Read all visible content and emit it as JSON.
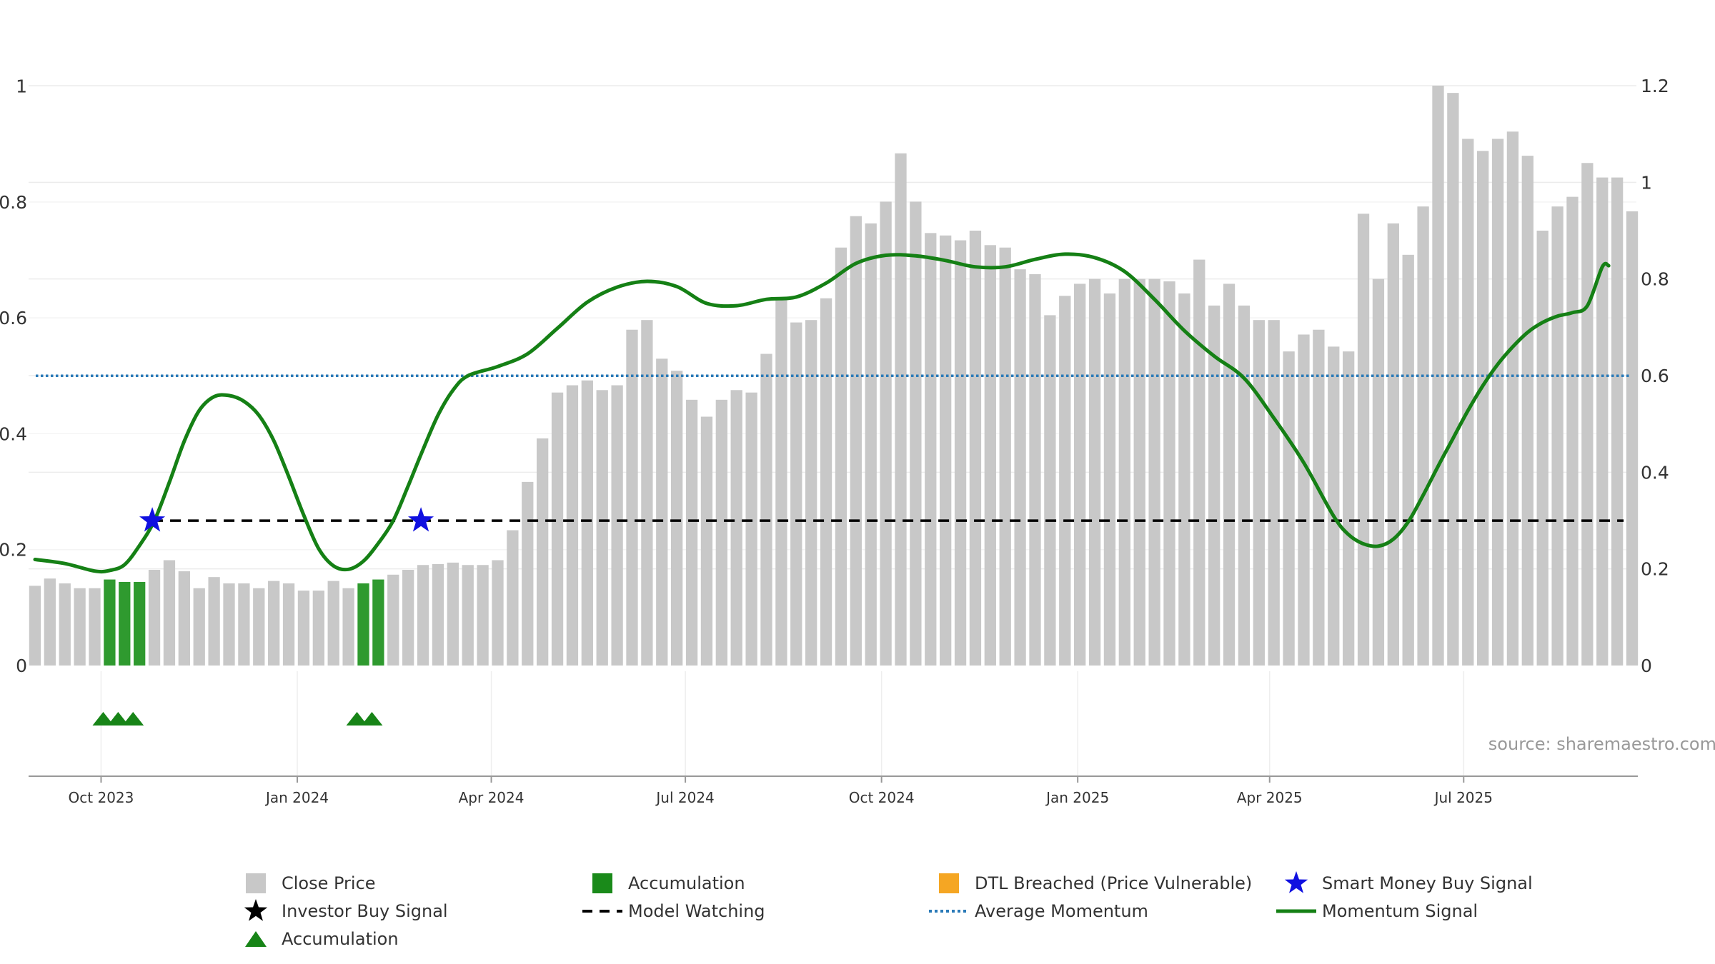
{
  "source_text": "source: sharemaestro.com",
  "colors": {
    "close_price": "#c8c8c8",
    "accumulation": "#2f9a2f",
    "accumulation_marker": "#178417",
    "dtl_breached": "#f5a623",
    "smart_money_star": "#1010e0",
    "investor_star": "#000000",
    "model_watching": "#000000",
    "average_momentum": "#2a7ab8",
    "momentum": "#158015"
  },
  "legend": [
    {
      "key": "close_price",
      "label": "Close Price",
      "symbol": "square-grey-icon"
    },
    {
      "key": "accumulation_bar",
      "label": "Accumulation",
      "symbol": "square-green-icon"
    },
    {
      "key": "dtl",
      "label": "DTL Breached (Price Vulnerable)",
      "symbol": "square-orange-icon"
    },
    {
      "key": "smart_money",
      "label": "Smart Money Buy Signal",
      "symbol": "star-blue-icon"
    },
    {
      "key": "investor",
      "label": "Investor Buy Signal",
      "symbol": "star-black-icon"
    },
    {
      "key": "model_watching",
      "label": "Model Watching",
      "symbol": "dashed-line-icon"
    },
    {
      "key": "average_momentum",
      "label": "Average Momentum",
      "symbol": "dotted-line-icon"
    },
    {
      "key": "momentum",
      "label": "Momentum Signal",
      "symbol": "solid-line-icon"
    },
    {
      "key": "accumulation_marker",
      "label": "Accumulation",
      "symbol": "triangle-green-icon"
    }
  ],
  "chart_data": {
    "type": "bar",
    "left_axis": {
      "ticks": [
        0,
        0.2,
        0.4,
        0.6,
        0.8,
        1
      ],
      "tick_labels": [
        "0",
        "0.2",
        "0.4",
        "0.6",
        "0.8",
        "1"
      ],
      "range": [
        0,
        1.05
      ]
    },
    "right_axis": {
      "ticks": [
        0,
        0.2,
        0.4,
        0.6,
        0.8,
        1,
        1.2
      ],
      "tick_labels": [
        "0",
        "0.2",
        "0.4",
        "0.6",
        "0.8",
        "1",
        "1.2"
      ],
      "range": [
        0,
        1.2
      ]
    },
    "x_axis": {
      "start": "2023-08-28",
      "end": "2025-09-20",
      "ticks": [
        {
          "date": "2023-10-01",
          "label": "Oct 2023"
        },
        {
          "date": "2024-01-01",
          "label": "Jan 2024"
        },
        {
          "date": "2024-04-01",
          "label": "Apr 2024"
        },
        {
          "date": "2024-07-01",
          "label": "Jul 2024"
        },
        {
          "date": "2024-10-01",
          "label": "Oct 2024"
        },
        {
          "date": "2025-01-01",
          "label": "Jan 2025"
        },
        {
          "date": "2025-04-01",
          "label": "Apr 2025"
        },
        {
          "date": "2025-07-01",
          "label": "Jul 2025"
        }
      ]
    },
    "close_price": {
      "name": "Close Price",
      "week_start": "2023-08-28",
      "values": [
        0.165,
        0.18,
        0.17,
        0.16,
        0.16,
        0.178,
        0.173,
        0.173,
        0.198,
        0.218,
        0.195,
        0.16,
        0.183,
        0.17,
        0.17,
        0.16,
        0.175,
        0.17,
        0.155,
        0.155,
        0.175,
        0.16,
        0.17,
        0.178,
        0.188,
        0.198,
        0.208,
        0.21,
        0.213,
        0.208,
        0.208,
        0.218,
        0.28,
        0.38,
        0.47,
        0.565,
        0.58,
        0.59,
        0.57,
        0.58,
        0.695,
        0.715,
        0.635,
        0.61,
        0.55,
        0.515,
        0.55,
        0.57,
        0.565,
        0.645,
        0.76,
        0.71,
        0.715,
        0.76,
        0.865,
        0.93,
        0.915,
        0.96,
        1.06,
        0.96,
        0.895,
        0.89,
        0.88,
        0.9,
        0.87,
        0.865,
        0.82,
        0.81,
        0.725,
        0.765,
        0.79,
        0.8,
        0.77,
        0.8,
        0.8,
        0.8,
        0.795,
        0.77,
        0.84,
        0.745,
        0.79,
        0.745,
        0.715,
        0.715,
        0.65,
        0.685,
        0.695,
        0.66,
        0.65,
        0.935,
        0.8,
        0.915,
        0.85,
        0.95,
        1.2,
        1.185,
        1.09,
        1.065,
        1.09,
        1.105,
        1.055,
        0.9,
        0.95,
        0.97,
        1.04,
        1.01,
        1.01,
        0.94
      ]
    },
    "accumulation_weeks": [
      5,
      6,
      7,
      22,
      23
    ],
    "accumulation_markers": [
      "2023-10-02",
      "2023-10-09",
      "2023-10-16",
      "2024-01-29",
      "2024-02-05"
    ],
    "model_watching": {
      "name": "Model Watching",
      "value": 0.25,
      "from": "2023-10-25",
      "to": "2025-09-14"
    },
    "average_momentum": {
      "name": "Average Momentum",
      "value": 0.5
    },
    "smart_money_buy_signals": [
      {
        "date": "2023-10-25",
        "value": 0.25
      },
      {
        "date": "2024-02-28",
        "value": 0.25
      }
    ],
    "momentum": {
      "name": "Momentum Signal",
      "points": [
        [
          "2023-08-31",
          0.183
        ],
        [
          "2023-09-14",
          0.176
        ],
        [
          "2023-09-28",
          0.163
        ],
        [
          "2023-10-05",
          0.164
        ],
        [
          "2023-10-12",
          0.174
        ],
        [
          "2023-10-19",
          0.207
        ],
        [
          "2023-10-26",
          0.25
        ],
        [
          "2023-11-02",
          0.316
        ],
        [
          "2023-11-09",
          0.387
        ],
        [
          "2023-11-16",
          0.44
        ],
        [
          "2023-11-23",
          0.464
        ],
        [
          "2023-11-30",
          0.466
        ],
        [
          "2023-12-07",
          0.456
        ],
        [
          "2023-12-14",
          0.432
        ],
        [
          "2023-12-21",
          0.388
        ],
        [
          "2023-12-28",
          0.326
        ],
        [
          "2024-01-04",
          0.26
        ],
        [
          "2024-01-11",
          0.202
        ],
        [
          "2024-01-18",
          0.172
        ],
        [
          "2024-01-25",
          0.166
        ],
        [
          "2024-02-01",
          0.18
        ],
        [
          "2024-02-08",
          0.211
        ],
        [
          "2024-02-15",
          0.25
        ],
        [
          "2024-02-22",
          0.31
        ],
        [
          "2024-02-29",
          0.373
        ],
        [
          "2024-03-07",
          0.432
        ],
        [
          "2024-03-14",
          0.475
        ],
        [
          "2024-03-21",
          0.5
        ],
        [
          "2024-04-04",
          0.516
        ],
        [
          "2024-04-18",
          0.538
        ],
        [
          "2024-05-02",
          0.582
        ],
        [
          "2024-05-16",
          0.627
        ],
        [
          "2024-05-30",
          0.653
        ],
        [
          "2024-06-13",
          0.663
        ],
        [
          "2024-06-27",
          0.654
        ],
        [
          "2024-07-11",
          0.625
        ],
        [
          "2024-07-25",
          0.621
        ],
        [
          "2024-08-08",
          0.632
        ],
        [
          "2024-08-22",
          0.636
        ],
        [
          "2024-09-05",
          0.66
        ],
        [
          "2024-09-19",
          0.694
        ],
        [
          "2024-10-03",
          0.708
        ],
        [
          "2024-10-17",
          0.707
        ],
        [
          "2024-10-31",
          0.699
        ],
        [
          "2024-11-14",
          0.688
        ],
        [
          "2024-11-28",
          0.688
        ],
        [
          "2024-12-12",
          0.701
        ],
        [
          "2024-12-26",
          0.71
        ],
        [
          "2025-01-09",
          0.704
        ],
        [
          "2025-01-23",
          0.68
        ],
        [
          "2025-02-06",
          0.632
        ],
        [
          "2025-02-20",
          0.578
        ],
        [
          "2025-03-06",
          0.534
        ],
        [
          "2025-03-20",
          0.496
        ],
        [
          "2025-04-03",
          0.427
        ],
        [
          "2025-04-17",
          0.35
        ],
        [
          "2025-05-01",
          0.258
        ],
        [
          "2025-05-08",
          0.226
        ],
        [
          "2025-05-15",
          0.21
        ],
        [
          "2025-05-22",
          0.206
        ],
        [
          "2025-05-29",
          0.218
        ],
        [
          "2025-06-05",
          0.248
        ],
        [
          "2025-06-12",
          0.294
        ],
        [
          "2025-06-19",
          0.344
        ],
        [
          "2025-06-26",
          0.392
        ],
        [
          "2025-07-03",
          0.44
        ],
        [
          "2025-07-10",
          0.483
        ],
        [
          "2025-07-17",
          0.52
        ],
        [
          "2025-07-24",
          0.55
        ],
        [
          "2025-07-31",
          0.575
        ],
        [
          "2025-08-07",
          0.592
        ],
        [
          "2025-08-14",
          0.603
        ],
        [
          "2025-08-21",
          0.609
        ],
        [
          "2025-08-28",
          0.621
        ],
        [
          "2025-09-04",
          0.688
        ],
        [
          "2025-09-07",
          0.69
        ]
      ]
    }
  }
}
